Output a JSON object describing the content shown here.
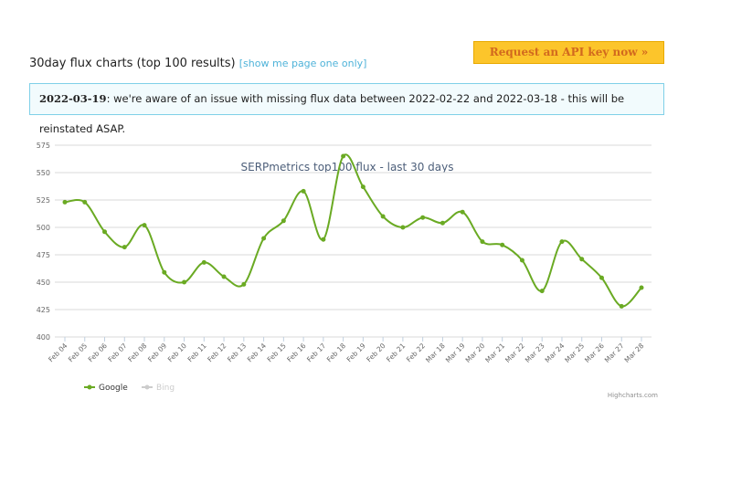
{
  "header": {
    "title": "30day flux charts (top 100 results)",
    "link": "[show me page one only]",
    "button": "Request an API key now »"
  },
  "notice": {
    "date": "2022-03-19",
    "text": ": we're aware of an issue with missing flux data between 2022-02-22 and 2022-03-18 - this will be reinstated ASAP."
  },
  "chart_data": {
    "type": "spline",
    "title": "SERPmetrics top100 flux - last 30 days",
    "credits": "Highcharts.com",
    "categories": [
      "Feb 04",
      "Feb 05",
      "Feb 06",
      "Feb 07",
      "Feb 08",
      "Feb 09",
      "Feb 10",
      "Feb 11",
      "Feb 12",
      "Feb 13",
      "Feb 14",
      "Feb 15",
      "Feb 16",
      "Feb 17",
      "Feb 18",
      "Feb 19",
      "Feb 20",
      "Feb 21",
      "Feb 22",
      "Mar 18",
      "Mar 19",
      "Mar 20",
      "Mar 21",
      "Mar 22",
      "Mar 23",
      "Mar 24",
      "Mar 25",
      "Mar 26",
      "Mar 27",
      "Mar 28"
    ],
    "series": [
      {
        "name": "Google",
        "color": "#6aaa23",
        "values": [
          523,
          523,
          496,
          482,
          502,
          459,
          450,
          468,
          455,
          448,
          490,
          506,
          533,
          489,
          565,
          537,
          510,
          500,
          509,
          504,
          514,
          487,
          484,
          470,
          442,
          487,
          471,
          454,
          428,
          445
        ]
      },
      {
        "name": "Bing",
        "color": "#cccccc",
        "values": [
          null,
          null,
          null,
          null,
          null,
          null,
          null,
          null,
          null,
          null,
          null,
          null,
          null,
          null,
          null,
          null,
          null,
          null,
          null,
          null,
          null,
          null,
          null,
          null,
          null,
          null,
          null,
          null,
          null,
          null
        ]
      }
    ],
    "ylim": [
      400,
      575
    ],
    "yticks": [
      400,
      425,
      450,
      475,
      500,
      525,
      550,
      575
    ],
    "grid": true
  }
}
